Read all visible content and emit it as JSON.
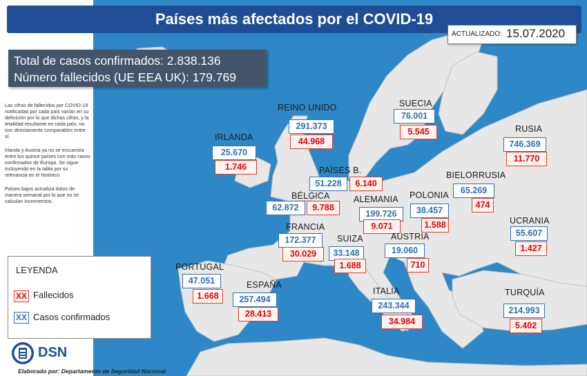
{
  "header": {
    "title": "Países más afectados por el COVID-19"
  },
  "updated": {
    "label": "ACTUALIZADO:",
    "date": "15.07.2020"
  },
  "totals": {
    "confirmed_line": "Total de casos confirmados:  2.838.136",
    "deaths_line": "Número fallecidos (UE EEA UK): 179.769"
  },
  "notes": [
    "Las cifras de fallecidos por COVID-19 notificadas por cada país varían en su definición por lo que dichas cifras, y la letalidad resultante en cada país, no son directamente comparables entre sí.",
    "Irlanda y Austria ya no se encuentra entre los quince países con más casos confirmados de Europa. Se sigue incluyendo en la tabla por su relevancia en el histórico",
    "Países bajos actualiza datos de manera semanal por lo que no se calculan incrementos."
  ],
  "countries": {
    "irlanda": {
      "name": "IRLANDA",
      "confirmed": "25.670",
      "deaths": "1.746"
    },
    "reino_unido": {
      "name": "REINO UNIDO",
      "confirmed": "291.373",
      "deaths": "44.968"
    },
    "suecia": {
      "name": "SUECIA",
      "confirmed": "76.001",
      "deaths": "5.545"
    },
    "rusia": {
      "name": "RUSIA",
      "confirmed": "746.369",
      "deaths": "11.770"
    },
    "paises_b": {
      "name": "PAÍSES B.",
      "confirmed": "51.228",
      "deaths": "6.140"
    },
    "belgica": {
      "name": "BÉLGICA",
      "confirmed": "62.872",
      "deaths": "9.788"
    },
    "bielorrusia": {
      "name": "BIELORRUSIA",
      "confirmed": "65.269",
      "deaths": "474"
    },
    "alemania": {
      "name": "ALEMANIA",
      "confirmed": "199.726",
      "deaths": "9.071"
    },
    "polonia": {
      "name": "POLONIA",
      "confirmed": "38.457",
      "deaths": "1.588"
    },
    "francia": {
      "name": "FRANCIA",
      "confirmed": "172.377",
      "deaths": "30.029"
    },
    "suiza": {
      "name": "SUIZA",
      "confirmed": "33.148",
      "deaths": "1.688"
    },
    "austria": {
      "name": "AUSTRIA",
      "confirmed": "19.060",
      "deaths": "710"
    },
    "ucrania": {
      "name": "UCRANIA",
      "confirmed": "55.607",
      "deaths": "1.427"
    },
    "portugal": {
      "name": "PORTUGAL",
      "confirmed": "47.051",
      "deaths": "1.668"
    },
    "espana": {
      "name": "ESPAÑA",
      "confirmed": "257.494",
      "deaths": "28.413"
    },
    "italia": {
      "name": "ITALIA",
      "confirmed": "243.344",
      "deaths": "34.984"
    },
    "turquia": {
      "name": "TURQUÍA",
      "confirmed": "214.993",
      "deaths": "5.402"
    }
  },
  "legend": {
    "title": "LEYENDA",
    "deaths_marker": "XX",
    "deaths_label": "Fallecidos",
    "confirmed_marker": "XX",
    "confirmed_label": "Casos confirmados"
  },
  "brand": {
    "name": "DSN",
    "credit": "Elaborado por: Departamento de Seguridad Nacional"
  },
  "colors": {
    "sea": "#2e88c8",
    "land": "#e7e7e7",
    "header": "#1f4e96",
    "confirmed": "#2e6fb4",
    "deaths": "#e60000"
  }
}
